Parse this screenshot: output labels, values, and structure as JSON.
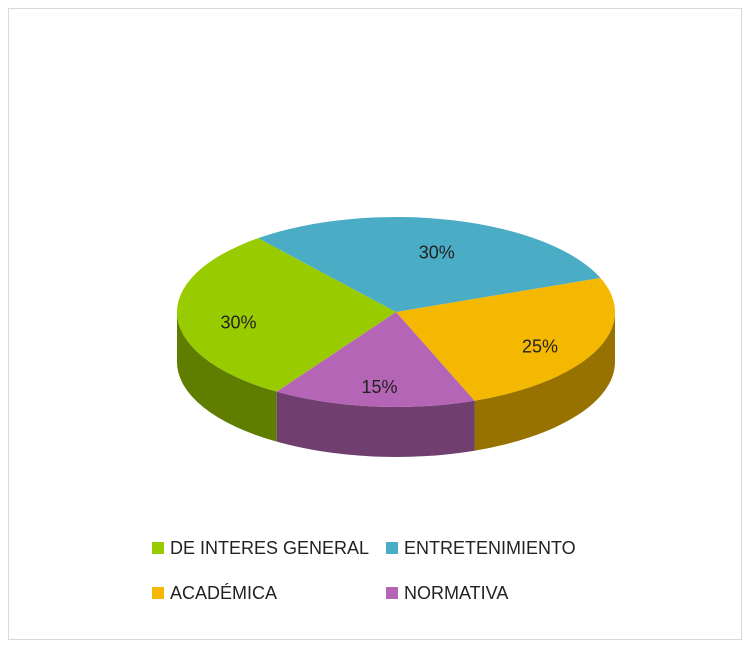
{
  "chart_data": {
    "type": "pie",
    "categories": [
      "DE INTERES GENERAL",
      "ENTRETENIMIENTO",
      "ACADÉMICA",
      "NORMATIVA"
    ],
    "values": [
      30,
      30,
      25,
      15
    ],
    "value_labels": [
      "30%",
      "30%",
      "25%",
      "15%"
    ],
    "colors": [
      "#99cc00",
      "#4bacc6",
      "#f5b800",
      "#b565b5"
    ],
    "legend": "bottom"
  }
}
